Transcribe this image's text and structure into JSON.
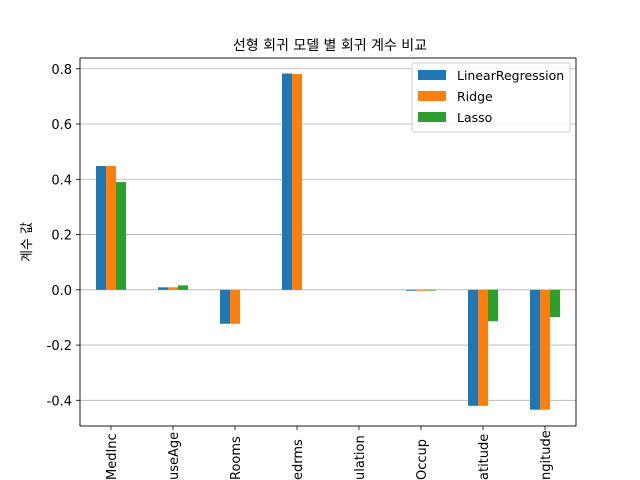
{
  "chart_data": {
    "type": "bar",
    "title": "선형 회귀 모델 별 회귀 계수 비교",
    "xlabel": "",
    "ylabel": "계수 값",
    "categories": [
      "MedInc",
      "HouseAge",
      "AveRooms",
      "AveBedrms",
      "Population",
      "AveOccup",
      "Latitude",
      "Longitude"
    ],
    "category_tick_labels_visible": [
      "MedInc",
      "useAge",
      "Rooms",
      "edrms",
      "ulation",
      "Occup",
      "atitude",
      "ngitude"
    ],
    "series": [
      {
        "name": "LinearRegression",
        "color": "#1f77b4",
        "values": [
          0.448,
          0.009,
          -0.123,
          0.783,
          -2e-06,
          -0.0035,
          -0.42,
          -0.434
        ]
      },
      {
        "name": "Ridge",
        "color": "#ff7f0e",
        "values": [
          0.448,
          0.009,
          -0.123,
          0.781,
          -2e-06,
          -0.0035,
          -0.42,
          -0.434
        ]
      },
      {
        "name": "Lasso",
        "color": "#2ca02c",
        "values": [
          0.39,
          0.016,
          0.0,
          0.0,
          2e-05,
          -0.003,
          -0.114,
          -0.099
        ]
      }
    ],
    "yticks": [
      -0.4,
      -0.2,
      0.0,
      0.2,
      0.4,
      0.6,
      0.8
    ],
    "ytick_labels": [
      "-0.4",
      "-0.2",
      "0.0",
      "0.2",
      "0.4",
      "0.6",
      "0.8"
    ],
    "ylim": [
      -0.493,
      0.839
    ],
    "grid": "horizontal",
    "legend_position": "top-right"
  }
}
